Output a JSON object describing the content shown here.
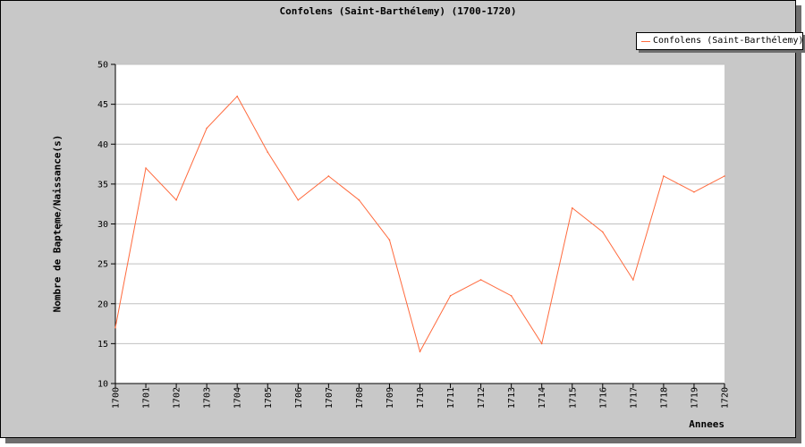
{
  "chart_data": {
    "type": "line",
    "title": "Confolens (Saint-Barthélemy) (1700-1720)",
    "xlabel": "Annees",
    "ylabel": "Nombre de Baptęme/Naissance(s)",
    "categories": [
      "1700",
      "1701",
      "1702",
      "1703",
      "1704",
      "1705",
      "1706",
      "1707",
      "1708",
      "1709",
      "1710",
      "1711",
      "1712",
      "1713",
      "1714",
      "1715",
      "1716",
      "1717",
      "1718",
      "1719",
      "1720"
    ],
    "series": [
      {
        "name": "Confolens (Saint-Barthélemy)",
        "color": "#ff6a3d",
        "values": [
          17,
          37,
          33,
          42,
          46,
          39,
          33,
          36,
          33,
          28,
          14,
          21,
          23,
          21,
          15,
          32,
          29,
          23,
          36,
          34,
          36
        ]
      }
    ],
    "ylim": [
      10,
      50
    ],
    "yticks": [
      10,
      15,
      20,
      25,
      30,
      35,
      40,
      45,
      50
    ],
    "grid": true,
    "legend_position": "top-right",
    "colors": {
      "background": "#c8c8c8",
      "plot": "#ffffff",
      "grid": "#c0c0c0",
      "shadow": "#6e6e6e"
    }
  }
}
